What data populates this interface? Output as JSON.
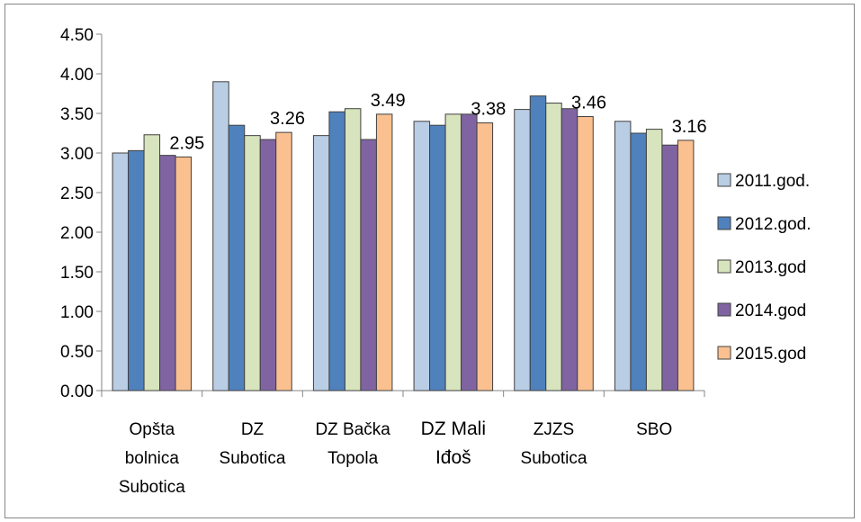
{
  "chart_data": {
    "type": "bar",
    "title": "",
    "xlabel": "",
    "ylabel": "",
    "ylim": [
      0,
      4.5
    ],
    "ytick_step": 0.5,
    "ytick_labels": [
      "0.00",
      "0.50",
      "1.00",
      "1.50",
      "2.00",
      "2.50",
      "3.00",
      "3.50",
      "4.00",
      "4.50"
    ],
    "grid": false,
    "legend_position": "right",
    "categories": [
      {
        "lines": [
          "Opšta",
          "bolnica",
          "Subotica"
        ],
        "emphasis": false
      },
      {
        "lines": [
          "DZ",
          "Subotica"
        ],
        "emphasis": false
      },
      {
        "lines": [
          "DZ Bačka",
          "Topola"
        ],
        "emphasis": false
      },
      {
        "lines": [
          "DZ Mali",
          "Iđoš"
        ],
        "emphasis": true
      },
      {
        "lines": [
          "ZJZS",
          "Subotica"
        ],
        "emphasis": false
      },
      {
        "lines": [
          "SBO"
        ],
        "emphasis": false
      }
    ],
    "series": [
      {
        "name": "2011.god.",
        "color": "#b9cde5",
        "values": [
          3.0,
          3.9,
          3.22,
          3.4,
          3.55,
          3.4
        ]
      },
      {
        "name": "2012.god.",
        "color": "#4f81bd",
        "values": [
          3.03,
          3.35,
          3.52,
          3.35,
          3.72,
          3.25
        ]
      },
      {
        "name": "2013.god",
        "color": "#d7e4bd",
        "values": [
          3.23,
          3.22,
          3.56,
          3.49,
          3.63,
          3.3
        ]
      },
      {
        "name": "2014.god",
        "color": "#8064a2",
        "values": [
          2.97,
          3.17,
          3.17,
          3.49,
          3.56,
          3.1
        ]
      },
      {
        "name": "2015.god",
        "color": "#fac090",
        "values": [
          2.95,
          3.26,
          3.49,
          3.38,
          3.46,
          3.16
        ]
      }
    ],
    "data_labels": {
      "series_index": 4,
      "texts": [
        "2.95",
        "3.26",
        "3.49",
        "3.38",
        "3.46",
        "3.16"
      ]
    }
  }
}
